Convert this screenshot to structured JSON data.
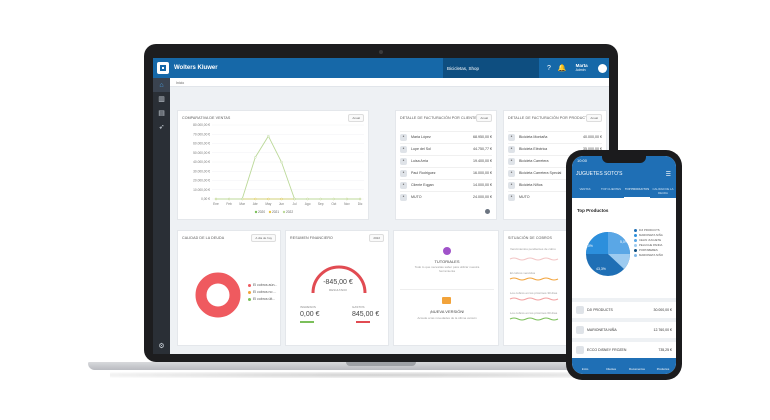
{
  "app": {
    "brand": "Wolters Kluwer",
    "company": "Bicicletas, Shop",
    "user_name": "Marta",
    "user_role": "Admin",
    "help_icon": "help-icon",
    "bell_icon": "bell-icon"
  },
  "sidebar": {
    "items": [
      {
        "icon": "home-icon"
      },
      {
        "icon": "bar-chart-icon"
      },
      {
        "icon": "growth-chart-icon"
      },
      {
        "icon": "rocket-icon"
      }
    ],
    "bottom_icon": "settings-icon"
  },
  "breadcrumb": "Inicio",
  "cards": {
    "sales": {
      "title": "COMPARATIVA DE VENTAS",
      "pill": "Anual",
      "y_ticks": [
        "80.000,00 €",
        "70.000,00 €",
        "60.000,00 €",
        "50.000,00 €",
        "40.000,00 €",
        "30.000,00 €",
        "20.000,00 €",
        "10.000,00 €",
        "0,00 €"
      ],
      "legend": [
        "2020",
        "2021",
        "2022"
      ]
    },
    "clients": {
      "title": "DETALLE DE FACTURACIÓN POR CLIENTES",
      "pill": "Anual",
      "rows": [
        {
          "name": "Maria López",
          "value": "68.950,00 €"
        },
        {
          "name": "Lupe del Sol",
          "value": "44.750,77 €"
        },
        {
          "name": "Luisa Arria",
          "value": "19.400,00 €"
        },
        {
          "name": "Paul Rodriguez",
          "value": "16.000,00 €"
        },
        {
          "name": "Cliente Eqgan",
          "value": "14.000,00 €"
        },
        {
          "name": "MUTO",
          "value": "24.000,00 €"
        }
      ]
    },
    "products": {
      "title": "DETALLE DE FACTURACIÓN POR PRODUCTOS",
      "pill": "Anual",
      "rows": [
        {
          "name": "Bicicleta Montaña",
          "value": "40.000,00 €"
        },
        {
          "name": "Bicicleta Eléctrica",
          "value": "35.000,00 €"
        },
        {
          "name": "Bicicleta Carretera",
          "value": "25.000,00 €"
        },
        {
          "name": "Bicicleta Carretera Special",
          "value": "20.000,00 €"
        },
        {
          "name": "Bicicleta Niños",
          "value": "16.000,00 €"
        },
        {
          "name": "MUTO",
          "value": "12.000,00 €"
        }
      ]
    },
    "quality": {
      "title": "CALIDAD DE LA DEUDA",
      "pill": "A día de hoy",
      "legend": [
        "El cobros aún...",
        "El cobros no ...",
        "El cobros últ..."
      ]
    },
    "finance": {
      "title": "RESUMEN FINANCIERO",
      "pill": "2022",
      "main_value": "-845,00 €",
      "main_label": "RESULTADO",
      "left_label": "INGRESOS",
      "left_value": "0,00 €",
      "right_label": "GASTOS",
      "right_value": "845,00 €"
    },
    "tutorials": {
      "title": "TUTORIALES",
      "text": "Todo lo que necesitas saber para utilizar nuestra herramienta",
      "new_title": "¡NUEVA VERSIÓN!",
      "new_text": "Accede a las novedades de la última versión"
    },
    "collections": {
      "title": "SITUACIÓN DE COBROS",
      "lines": [
        "Vencimientos pendientes de cobro",
        "El cobros vencidos",
        "Los cobros en los próximos 30 días",
        "Los cobros en los próximos 60 días"
      ]
    }
  },
  "phone": {
    "time": "10:00",
    "app_title": "JUGUETES SOTO'S",
    "tabs": [
      "VENTAS",
      "TOP CLIENTES",
      "TOP PRODUCTOS",
      "CALIDAD DE LA DEUDA"
    ],
    "section_title": "Top Productos",
    "pie_labels": [
      "12,0%",
      "5,0%",
      "43,3%"
    ],
    "legend": [
      "DJI PRODUCTS",
      "MARIONETA NIÑA",
      "CELIN JUGUETE",
      "PELUCHE PANDA",
      "PORTABEBES",
      "MARIONETA NIÑO"
    ],
    "items": [
      {
        "name": "DJI PRODUCTS",
        "value": "30.000,00 €"
      },
      {
        "name": "MARIONETA NIÑA",
        "value": "12.760,00 €"
      },
      {
        "name": "ECCO DISNEY FROZEN",
        "value": "735,25 €"
      }
    ],
    "bottom_nav": [
      "Inicio",
      "Clientes",
      "Documentos",
      "Productos"
    ]
  },
  "chart_data": {
    "type": "line",
    "categories": [
      "Ene",
      "Feb",
      "Mar",
      "Abr",
      "May",
      "Jun",
      "Jul",
      "Ago",
      "Sep",
      "Oct",
      "Nov",
      "Dic"
    ],
    "series": [
      {
        "name": "2020",
        "values": [
          0,
          0,
          0,
          0,
          0,
          0,
          0,
          0,
          0,
          0,
          0,
          0
        ]
      },
      {
        "name": "2021",
        "values": [
          0,
          0,
          0,
          0,
          0,
          0,
          0,
          0,
          0,
          0,
          0,
          0
        ]
      },
      {
        "name": "2022",
        "values": [
          0,
          0,
          0,
          45000,
          68000,
          40000,
          0,
          0,
          0,
          0,
          0,
          0
        ]
      }
    ],
    "ylim": [
      0,
      80000
    ],
    "colors": {
      "2020": "#7bbf5a",
      "2021": "#e8c547",
      "2022": "#bcd99a"
    }
  }
}
